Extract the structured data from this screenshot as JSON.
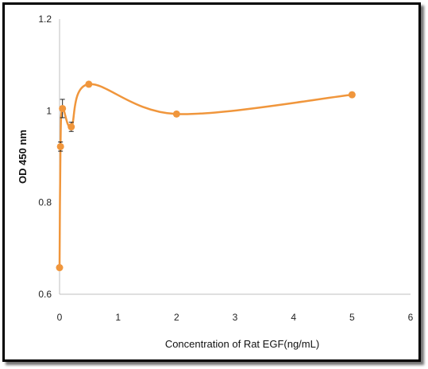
{
  "chart_data": {
    "type": "line",
    "title": "",
    "xlabel": "Concentration of Rat EGF(ng/mL)",
    "ylabel": "OD 450 nm",
    "xlim": [
      0,
      6
    ],
    "ylim": [
      0.6,
      1.2
    ],
    "x_ticks": [
      "0",
      "1",
      "2",
      "3",
      "4",
      "5",
      "6"
    ],
    "y_ticks": [
      "0.6",
      "0.8",
      "1",
      "1.2"
    ],
    "grid": false,
    "legend": "none",
    "line_style": "smoothed",
    "series": [
      {
        "color": "#F0963C",
        "x": [
          0,
          0.016,
          0.05,
          0.2,
          0.5,
          2,
          5
        ],
        "y": [
          0.658,
          0.922,
          1.005,
          0.965,
          1.058,
          0.993,
          1.035
        ],
        "error": [
          0.005,
          0.01,
          0.02,
          0.01,
          0.005,
          0.005,
          0.005
        ]
      }
    ]
  }
}
